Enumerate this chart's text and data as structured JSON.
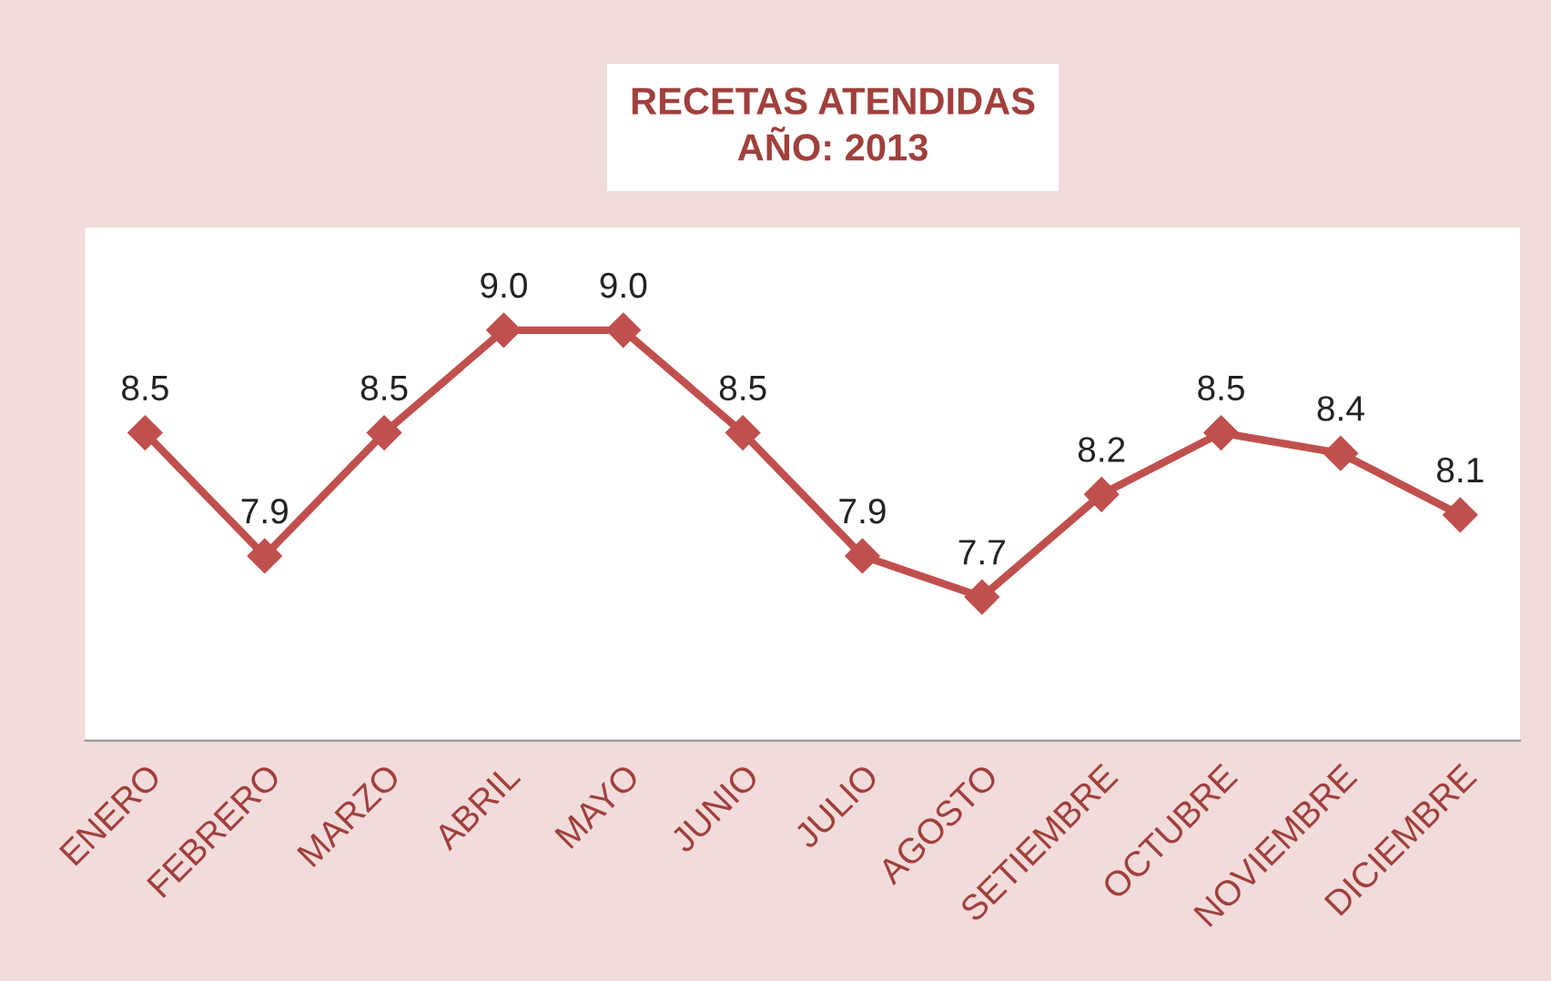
{
  "chart_data": {
    "type": "line",
    "title": "RECETAS ATENDIDAS\nAÑO: 2013",
    "categories": [
      "ENERO",
      "FEBRERO",
      "MARZO",
      "ABRIL",
      "MAYO",
      "JUNIO",
      "JULIO",
      "AGOSTO",
      "SETIEMBRE",
      "OCTUBRE",
      "NOVIEMBRE",
      "DICIEMBRE"
    ],
    "series": [
      {
        "color": "#c0504d",
        "values": [
          8.5,
          7.9,
          8.5,
          9.0,
          9.0,
          8.5,
          7.9,
          7.7,
          8.2,
          8.5,
          8.4,
          8.1
        ],
        "value_labels": [
          "8.5",
          "7.9",
          "8.5",
          "9.0",
          "9.0",
          "8.5",
          "7.9",
          "7.7",
          "8.2",
          "8.5",
          "8.4",
          "8.1"
        ]
      }
    ],
    "ylim": [
      7,
      9.5
    ],
    "tick_labels": "x",
    "marker": "diamond",
    "line_style": "solid",
    "grid": false,
    "legend": false
  }
}
